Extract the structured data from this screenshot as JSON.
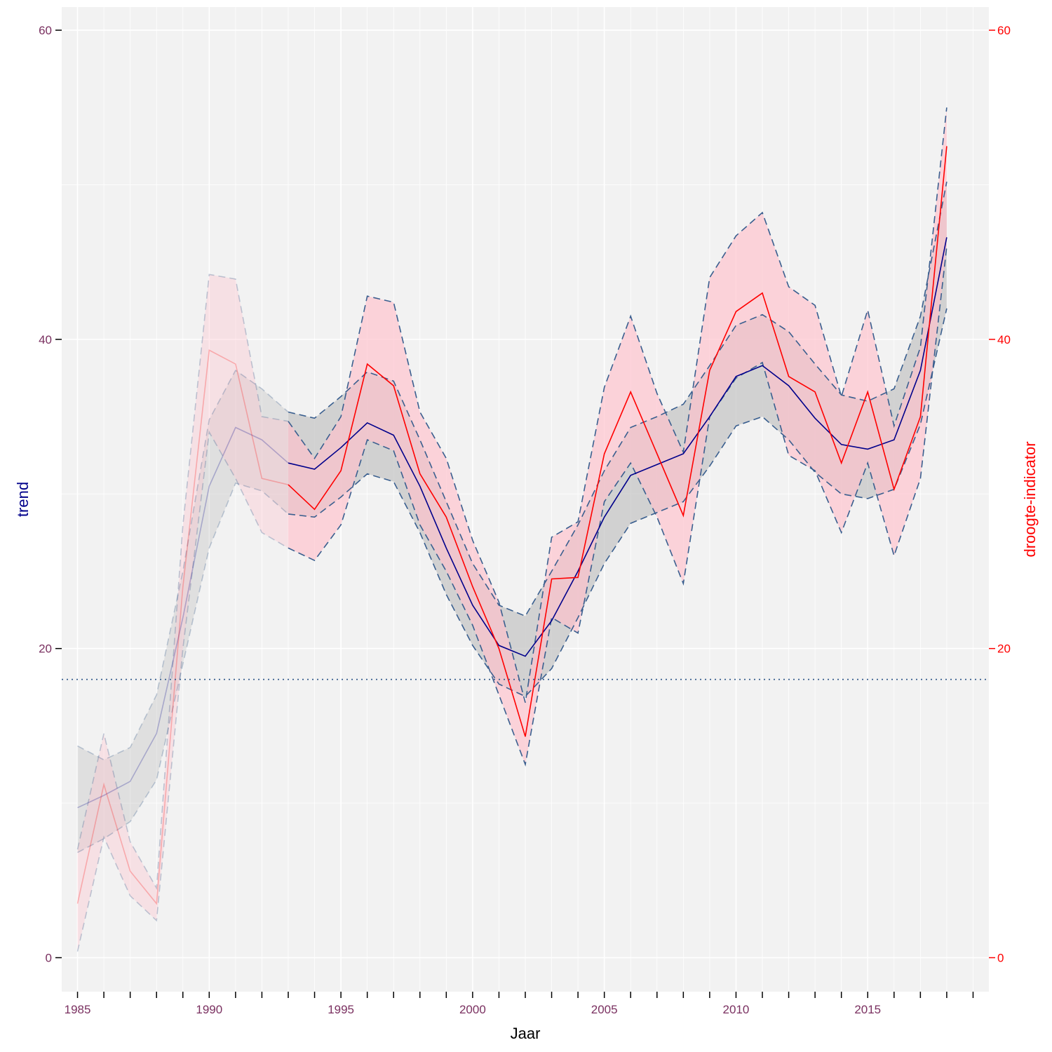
{
  "chart_data": {
    "type": "line",
    "xlabel": "Jaar",
    "ylabel_left": "trend",
    "ylabel_right": "droogte-indicator",
    "x_ticks": [
      1985,
      1990,
      1995,
      2000,
      2005,
      2010,
      2015
    ],
    "y_ticks_left": [
      0,
      20,
      40,
      60
    ],
    "y_ticks_right": [
      0,
      20,
      40,
      60
    ],
    "xlim": [
      1984.4,
      2019.6
    ],
    "ylim": [
      -2.2,
      61.5
    ],
    "reference_line_y": 18,
    "grid": true,
    "colors": {
      "panel": "#f2f2f2",
      "grid": "#ffffff",
      "trend_line": "#00008b",
      "trend_band": "#bebebe",
      "indicator_line": "#ff0000",
      "indicator_band": "#ffc0cb",
      "band_edge": "#3a5f8f",
      "left_axis_text": "#7a3060",
      "right_axis_text": "#ff0000",
      "left_title": "#00008b",
      "right_title": "#ff0000"
    },
    "faded_until": 1993,
    "series": [
      {
        "key": "trend",
        "x": [
          1985,
          1986,
          1987,
          1988,
          1989,
          1990,
          1991,
          1992,
          1993,
          1994,
          1995,
          1996,
          1997,
          1998,
          1999,
          2000,
          2001,
          2002,
          2003,
          2004,
          2005,
          2006,
          2007,
          2008,
          2009,
          2010,
          2011,
          2012,
          2013,
          2014,
          2015,
          2016,
          2017,
          2018
        ],
        "values": [
          9.7,
          10.5,
          11.4,
          14.5,
          22.0,
          30.5,
          34.3,
          33.5,
          32.0,
          31.6,
          33.0,
          34.6,
          33.8,
          30.5,
          26.5,
          22.8,
          20.2,
          19.5,
          21.8,
          25.0,
          28.5,
          31.2,
          31.9,
          32.6,
          35.0,
          37.6,
          38.3,
          37.0,
          34.9,
          33.2,
          32.9,
          33.5,
          38.0,
          46.6
        ],
        "lower": [
          6.8,
          7.7,
          8.8,
          11.5,
          19.0,
          26.5,
          30.7,
          30.2,
          28.7,
          28.5,
          29.8,
          31.3,
          30.8,
          27.5,
          23.5,
          20.2,
          17.7,
          16.9,
          18.7,
          22.0,
          25.5,
          28.1,
          28.8,
          29.5,
          31.8,
          34.4,
          35.0,
          33.5,
          31.4,
          30.0,
          29.7,
          30.3,
          34.5,
          42.0
        ],
        "upper": [
          13.7,
          12.8,
          13.6,
          17.0,
          25.0,
          34.8,
          38.0,
          36.8,
          35.3,
          34.9,
          36.3,
          37.9,
          37.3,
          33.5,
          29.5,
          25.5,
          22.8,
          22.1,
          25.0,
          28.0,
          31.5,
          34.3,
          35.0,
          35.8,
          38.3,
          40.9,
          41.6,
          40.5,
          38.4,
          36.4,
          36.0,
          36.8,
          41.5,
          50.2
        ]
      },
      {
        "key": "droogte-indicator",
        "x": [
          1985,
          1986,
          1987,
          1988,
          1989,
          1990,
          1991,
          1992,
          1993,
          1994,
          1995,
          1996,
          1997,
          1998,
          1999,
          2000,
          2001,
          2002,
          2003,
          2004,
          2005,
          2006,
          2007,
          2008,
          2009,
          2010,
          2011,
          2012,
          2013,
          2014,
          2015,
          2016,
          2017,
          2018
        ],
        "values": [
          3.5,
          11.2,
          5.6,
          3.5,
          24.0,
          39.3,
          38.4,
          31.0,
          30.6,
          29.0,
          31.5,
          38.4,
          37.0,
          31.3,
          28.5,
          24.0,
          20.0,
          14.3,
          24.5,
          24.6,
          32.6,
          36.6,
          32.6,
          28.6,
          38.0,
          41.8,
          43.0,
          37.6,
          36.6,
          32.0,
          36.6,
          30.3,
          35.0,
          52.5
        ],
        "lower": [
          0.4,
          7.8,
          4.0,
          2.4,
          20.0,
          34.0,
          31.0,
          27.5,
          26.5,
          25.7,
          28.0,
          33.5,
          32.8,
          28.0,
          25.0,
          21.5,
          17.0,
          12.5,
          22.0,
          21.0,
          29.5,
          32.0,
          28.5,
          24.2,
          35.0,
          37.5,
          38.5,
          32.5,
          31.5,
          27.5,
          32.0,
          26.0,
          31.0,
          46.0
        ],
        "upper": [
          7.0,
          14.5,
          7.5,
          4.5,
          28.0,
          44.2,
          43.9,
          35.0,
          34.7,
          32.3,
          35.0,
          42.8,
          42.4,
          35.3,
          32.3,
          27.0,
          23.0,
          16.5,
          27.2,
          28.2,
          36.9,
          41.5,
          36.5,
          32.7,
          44.0,
          46.7,
          48.2,
          43.4,
          42.2,
          36.3,
          41.9,
          34.4,
          39.5,
          55.0
        ]
      }
    ]
  }
}
